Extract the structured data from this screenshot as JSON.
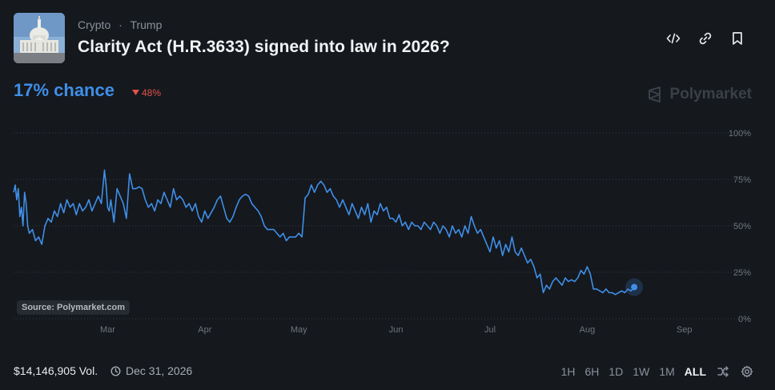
{
  "header": {
    "category": "Crypto",
    "separator": "·",
    "subcategory": "Trump",
    "title": "Clarity Act (H.R.3633) signed into law in 2026?"
  },
  "actions": [
    "embed-icon",
    "link-icon",
    "bookmark-icon"
  ],
  "odds": {
    "chance_label": "17% chance",
    "change_label": "48%",
    "change_direction": "down",
    "change_color": "#e0524a"
  },
  "brand": {
    "name": "Polymarket"
  },
  "source_label": "Source: Polymarket.com",
  "footer": {
    "volume": "$14,146,905 Vol.",
    "end_date": "Dec 31, 2026",
    "ranges": [
      "1H",
      "6H",
      "1D",
      "1W",
      "1M",
      "ALL"
    ],
    "active_range": "ALL"
  },
  "colors": {
    "accent": "#3f8fe8",
    "background": "#15181d",
    "down": "#e0524a"
  },
  "chart_data": {
    "type": "line",
    "title": "",
    "xlabel": "",
    "ylabel": "",
    "ylim": [
      0,
      100
    ],
    "yticks": [
      "100%",
      "75%",
      "50%",
      "25%",
      "0%"
    ],
    "ytick_values": [
      100,
      75,
      50,
      25,
      0
    ],
    "xticks": [
      "Mar",
      "Apr",
      "May",
      "Jun",
      "Jul",
      "Aug",
      "Sep"
    ],
    "xtick_positions": [
      45,
      76,
      106,
      137,
      167,
      198,
      229
    ],
    "xlim": [
      15,
      238
    ],
    "grid": true,
    "series": [
      {
        "values": [
          [
            15,
            68
          ],
          [
            15.5,
            72
          ],
          [
            16,
            64
          ],
          [
            16.5,
            70
          ],
          [
            17,
            55
          ],
          [
            17.5,
            60
          ],
          [
            18,
            50
          ],
          [
            18.5,
            68
          ],
          [
            19,
            62
          ],
          [
            19.5,
            50
          ],
          [
            20,
            46
          ],
          [
            21,
            48
          ],
          [
            22,
            42
          ],
          [
            23,
            44
          ],
          [
            24,
            40
          ],
          [
            25,
            50
          ],
          [
            26,
            54
          ],
          [
            27,
            52
          ],
          [
            28,
            58
          ],
          [
            29,
            55
          ],
          [
            30,
            62
          ],
          [
            31,
            57
          ],
          [
            32,
            64
          ],
          [
            33,
            60
          ],
          [
            34,
            62
          ],
          [
            35,
            56
          ],
          [
            36,
            62
          ],
          [
            37,
            58
          ],
          [
            38,
            60
          ],
          [
            39,
            64
          ],
          [
            40,
            58
          ],
          [
            41,
            62
          ],
          [
            42,
            66
          ],
          [
            43,
            62
          ],
          [
            44,
            80
          ],
          [
            44.5,
            72
          ],
          [
            45,
            60
          ],
          [
            45.5,
            58
          ],
          [
            46,
            64
          ],
          [
            47,
            52
          ],
          [
            48,
            70
          ],
          [
            49,
            66
          ],
          [
            50,
            62
          ],
          [
            51,
            54
          ],
          [
            52,
            78
          ],
          [
            53,
            70
          ],
          [
            54,
            70
          ],
          [
            55,
            71
          ],
          [
            56,
            70
          ],
          [
            57,
            64
          ],
          [
            58,
            60
          ],
          [
            59,
            62
          ],
          [
            60,
            58
          ],
          [
            61,
            64
          ],
          [
            62,
            62
          ],
          [
            63,
            68
          ],
          [
            64,
            64
          ],
          [
            65,
            60
          ],
          [
            66,
            70
          ],
          [
            67,
            64
          ],
          [
            68,
            66
          ],
          [
            69,
            64
          ],
          [
            70,
            60
          ],
          [
            71,
            62
          ],
          [
            72,
            58
          ],
          [
            73,
            62
          ],
          [
            74,
            55
          ],
          [
            75,
            52
          ],
          [
            76,
            58
          ],
          [
            77,
            54
          ],
          [
            78,
            57
          ],
          [
            79,
            60
          ],
          [
            80,
            64
          ],
          [
            81,
            66
          ],
          [
            82,
            60
          ],
          [
            83,
            54
          ],
          [
            84,
            52
          ],
          [
            85,
            55
          ],
          [
            86,
            60
          ],
          [
            87,
            64
          ],
          [
            88,
            66
          ],
          [
            89,
            67
          ],
          [
            90,
            66
          ],
          [
            91,
            62
          ],
          [
            92,
            60
          ],
          [
            93,
            58
          ],
          [
            94,
            55
          ],
          [
            95,
            50
          ],
          [
            96,
            48
          ],
          [
            97,
            48
          ],
          [
            98,
            48
          ],
          [
            99,
            46
          ],
          [
            100,
            44
          ],
          [
            101,
            46
          ],
          [
            102,
            42
          ],
          [
            103,
            44
          ],
          [
            104,
            44
          ],
          [
            105,
            44
          ],
          [
            106,
            46
          ],
          [
            107,
            44
          ],
          [
            108,
            65
          ],
          [
            109,
            67
          ],
          [
            110,
            72
          ],
          [
            111,
            68
          ],
          [
            112,
            72
          ],
          [
            113,
            74
          ],
          [
            114,
            72
          ],
          [
            115,
            68
          ],
          [
            116,
            70
          ],
          [
            117,
            66
          ],
          [
            118,
            64
          ],
          [
            119,
            60
          ],
          [
            120,
            64
          ],
          [
            121,
            60
          ],
          [
            122,
            56
          ],
          [
            123,
            62
          ],
          [
            124,
            58
          ],
          [
            125,
            54
          ],
          [
            126,
            60
          ],
          [
            127,
            56
          ],
          [
            128,
            62
          ],
          [
            129,
            52
          ],
          [
            130,
            58
          ],
          [
            131,
            56
          ],
          [
            132,
            62
          ],
          [
            133,
            58
          ],
          [
            134,
            60
          ],
          [
            135,
            54
          ],
          [
            136,
            54
          ],
          [
            137,
            52
          ],
          [
            138,
            56
          ],
          [
            139,
            50
          ],
          [
            140,
            52
          ],
          [
            141,
            48
          ],
          [
            142,
            52
          ],
          [
            143,
            50
          ],
          [
            144,
            50
          ],
          [
            145,
            48
          ],
          [
            146,
            52
          ],
          [
            147,
            50
          ],
          [
            148,
            48
          ],
          [
            149,
            52
          ],
          [
            150,
            50
          ],
          [
            151,
            46
          ],
          [
            152,
            50
          ],
          [
            153,
            48
          ],
          [
            154,
            44
          ],
          [
            155,
            50
          ],
          [
            156,
            46
          ],
          [
            157,
            48
          ],
          [
            158,
            44
          ],
          [
            159,
            50
          ],
          [
            160,
            46
          ],
          [
            161,
            55
          ],
          [
            162,
            50
          ],
          [
            163,
            46
          ],
          [
            164,
            48
          ],
          [
            165,
            44
          ],
          [
            166,
            40
          ],
          [
            167,
            36
          ],
          [
            168,
            44
          ],
          [
            169,
            38
          ],
          [
            170,
            42
          ],
          [
            171,
            34
          ],
          [
            172,
            40
          ],
          [
            173,
            36
          ],
          [
            174,
            44
          ],
          [
            175,
            36
          ],
          [
            176,
            34
          ],
          [
            177,
            38
          ],
          [
            178,
            34
          ],
          [
            179,
            30
          ],
          [
            180,
            32
          ],
          [
            181,
            28
          ],
          [
            182,
            22
          ],
          [
            183,
            24
          ],
          [
            184,
            14
          ],
          [
            185,
            18
          ],
          [
            186,
            16
          ],
          [
            187,
            20
          ],
          [
            188,
            22
          ],
          [
            189,
            20
          ],
          [
            190,
            18
          ],
          [
            191,
            22
          ],
          [
            192,
            20
          ],
          [
            193,
            21
          ],
          [
            194,
            20
          ],
          [
            195,
            22
          ],
          [
            196,
            26
          ],
          [
            197,
            24
          ],
          [
            198,
            28
          ],
          [
            199,
            24
          ],
          [
            200,
            16
          ],
          [
            201,
            16
          ],
          [
            202,
            15
          ],
          [
            203,
            14
          ],
          [
            204,
            16
          ],
          [
            205,
            14
          ],
          [
            206,
            14
          ],
          [
            207,
            13
          ],
          [
            208,
            14
          ],
          [
            209,
            15
          ],
          [
            210,
            14
          ],
          [
            211,
            16
          ],
          [
            212,
            15
          ],
          [
            213,
            17
          ]
        ]
      }
    ]
  }
}
